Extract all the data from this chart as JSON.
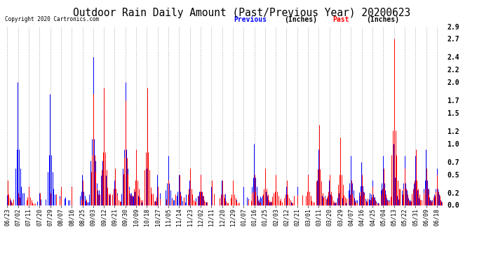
{
  "title": "Outdoor Rain Daily Amount (Past/Previous Year) 20200623",
  "copyright": "Copyright 2020 Cartronics.com",
  "legend_previous": "Previous",
  "legend_past": "Past",
  "legend_units": "(Inches)",
  "ylim": [
    0.0,
    2.9
  ],
  "yticks": [
    0.0,
    0.2,
    0.5,
    0.7,
    1.0,
    1.2,
    1.5,
    1.7,
    2.0,
    2.2,
    2.4,
    2.7,
    2.9
  ],
  "color_previous": "#0000ff",
  "color_past": "#ff0000",
  "background_color": "#ffffff",
  "grid_color": "#aaaaaa",
  "title_fontsize": 10.5,
  "tick_label_fontsize": 6,
  "x_tick_labels": [
    "06/23",
    "07/02",
    "07/11",
    "07/20",
    "07/29",
    "08/07",
    "08/16",
    "08/25",
    "09/03",
    "09/12",
    "09/21",
    "09/30",
    "10/09",
    "10/18",
    "10/27",
    "11/05",
    "11/14",
    "11/23",
    "12/02",
    "12/11",
    "12/20",
    "12/29",
    "01/07",
    "01/16",
    "01/25",
    "02/03",
    "02/12",
    "02/21",
    "03/01",
    "03/11",
    "03/20",
    "03/29",
    "04/07",
    "04/16",
    "04/25",
    "05/04",
    "05/13",
    "05/22",
    "05/31",
    "06/09",
    "06/18"
  ],
  "x_tick_positions": [
    0,
    9,
    18,
    27,
    36,
    45,
    54,
    63,
    72,
    81,
    90,
    99,
    108,
    117,
    126,
    135,
    144,
    153,
    162,
    171,
    180,
    189,
    198,
    207,
    216,
    225,
    234,
    243,
    252,
    261,
    270,
    279,
    288,
    297,
    306,
    315,
    324,
    333,
    342,
    351,
    360
  ]
}
